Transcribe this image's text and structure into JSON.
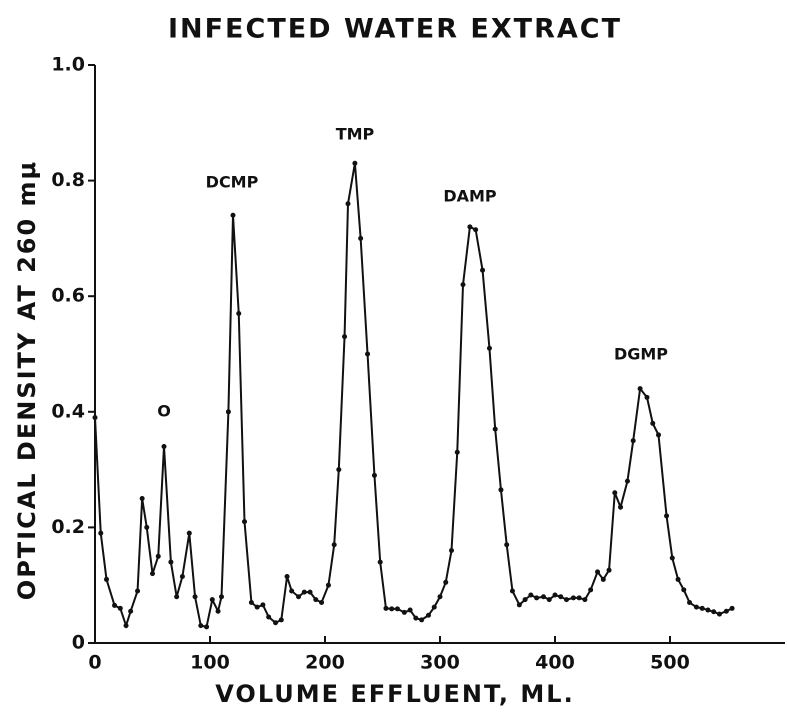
{
  "chart_data": {
    "type": "line",
    "title": "INFECTED WATER EXTRACT",
    "x_label": "VOLUME   EFFLUENT, ML.",
    "y_label": "OPTICAL DENSITY AT 260 mμ",
    "annotations": [
      "O",
      "DCMP",
      "TMP",
      "DAMP",
      "DGMP"
    ],
    "xlim": [
      0,
      600
    ],
    "ylim": [
      0,
      1
    ],
    "xticks": [
      0,
      100,
      200,
      300,
      400,
      500
    ],
    "yticks": [
      0,
      0.2,
      0.4,
      0.6,
      0.8,
      {
        "value": 1,
        "label": "1.0"
      }
    ],
    "color": "#111111",
    "x": [
      0,
      5,
      10,
      17,
      22,
      27,
      31,
      37,
      41,
      45,
      50,
      55,
      60,
      66,
      71,
      76,
      82,
      87,
      92,
      97,
      102,
      107,
      110,
      116,
      120,
      125,
      130,
      136,
      141,
      146,
      151,
      157,
      162,
      167,
      171,
      177,
      182,
      187,
      192,
      197,
      203,
      208,
      212,
      217,
      220,
      226,
      231,
      237,
      243,
      248,
      253,
      258,
      263,
      269,
      274,
      279,
      284,
      290,
      295,
      300,
      305,
      310,
      315,
      320,
      326,
      331,
      337,
      343,
      348,
      353,
      358,
      363,
      369,
      374,
      379,
      384,
      390,
      395,
      400,
      405,
      410,
      416,
      421,
      426,
      431,
      437,
      442,
      447,
      452,
      457,
      463,
      468,
      474,
      480,
      485,
      490,
      497,
      502,
      507,
      512,
      517,
      523,
      528,
      533,
      538,
      543,
      549,
      554
    ],
    "values": [
      0.39,
      0.19,
      0.11,
      0.065,
      0.06,
      0.03,
      0.055,
      0.09,
      0.25,
      0.2,
      0.12,
      0.15,
      0.34,
      0.14,
      0.08,
      0.115,
      0.19,
      0.08,
      0.03,
      0.028,
      0.075,
      0.055,
      0.08,
      0.4,
      0.74,
      0.57,
      0.21,
      0.07,
      0.062,
      0.066,
      0.045,
      0.035,
      0.04,
      0.115,
      0.09,
      0.08,
      0.088,
      0.088,
      0.075,
      0.07,
      0.1,
      0.17,
      0.3,
      0.53,
      0.76,
      0.83,
      0.7,
      0.5,
      0.29,
      0.14,
      0.06,
      0.059,
      0.059,
      0.053,
      0.057,
      0.043,
      0.04,
      0.048,
      0.062,
      0.08,
      0.105,
      0.16,
      0.33,
      0.62,
      0.72,
      0.715,
      0.645,
      0.51,
      0.37,
      0.265,
      0.17,
      0.09,
      0.066,
      0.075,
      0.083,
      0.078,
      0.08,
      0.075,
      0.083,
      0.08,
      0.075,
      0.078,
      0.078,
      0.075,
      0.092,
      0.123,
      0.11,
      0.126,
      0.26,
      0.235,
      0.28,
      0.35,
      0.44,
      0.425,
      0.38,
      0.36,
      0.22,
      0.147,
      0.11,
      0.092,
      0.07,
      0.062,
      0.06,
      0.057,
      0.054,
      0.05,
      0.055,
      0.06
    ]
  }
}
